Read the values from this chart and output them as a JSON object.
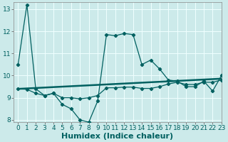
{
  "title": "",
  "xlabel": "Humidex (Indice chaleur)",
  "xlim": [
    -0.5,
    23
  ],
  "ylim": [
    7.9,
    13.3
  ],
  "yticks": [
    8,
    9,
    10,
    11,
    12,
    13
  ],
  "xticks": [
    0,
    1,
    2,
    3,
    4,
    5,
    6,
    7,
    8,
    9,
    10,
    11,
    12,
    13,
    14,
    15,
    16,
    17,
    18,
    19,
    20,
    21,
    22,
    23
  ],
  "bg_color": "#cceaea",
  "grid_color": "#f0ffff",
  "line_color": "#006060",
  "series_main": [
    10.5,
    13.2,
    9.4,
    9.1,
    9.2,
    8.7,
    8.5,
    8.0,
    7.9,
    8.85,
    11.85,
    11.8,
    11.9,
    11.85,
    10.5,
    10.7,
    10.3,
    9.8,
    9.75,
    9.5,
    9.5,
    9.75,
    9.3,
    10.0
  ],
  "series_reg": [
    9.4,
    9.42,
    9.44,
    9.46,
    9.48,
    9.5,
    9.52,
    9.54,
    9.56,
    9.58,
    9.6,
    9.62,
    9.64,
    9.66,
    9.68,
    9.7,
    9.72,
    9.74,
    9.76,
    9.78,
    9.8,
    9.82,
    9.84,
    9.86
  ],
  "series_avg": [
    9.4,
    9.38,
    9.2,
    9.1,
    9.2,
    9.0,
    9.0,
    8.95,
    9.0,
    9.1,
    9.45,
    9.45,
    9.48,
    9.48,
    9.42,
    9.42,
    9.5,
    9.62,
    9.7,
    9.6,
    9.6,
    9.7,
    9.7,
    9.8
  ],
  "font_size_ticks": 6.5,
  "font_size_label": 8.0
}
